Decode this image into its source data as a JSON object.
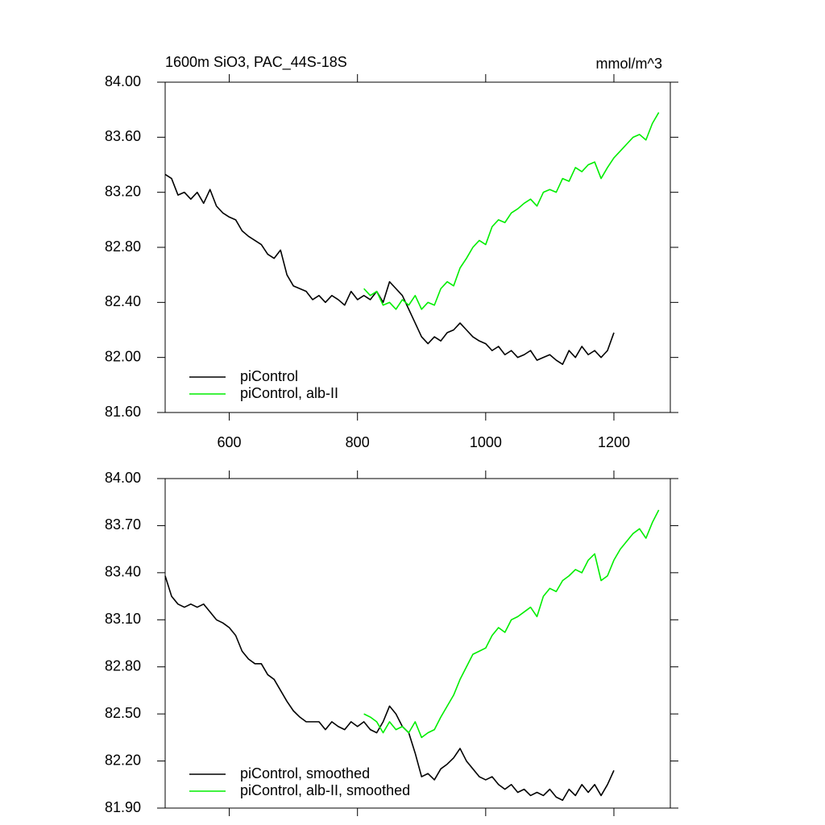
{
  "chart_data": [
    {
      "type": "line",
      "title": "1600m SiO3, PAC_44S-18S",
      "units": "mmol/m^3",
      "legend": "lower left",
      "xlim": [
        500,
        1288
      ],
      "xticks": [
        600,
        800,
        1000,
        1200
      ],
      "ylim": [
        81.6,
        84.0
      ],
      "yticks": [
        {
          "value": 81.6,
          "label": "81.60"
        },
        {
          "value": 82.0,
          "label": "82.00"
        },
        {
          "value": 82.4,
          "label": "82.40"
        },
        {
          "value": 82.8,
          "label": "82.80"
        },
        {
          "value": 83.2,
          "label": "83.20"
        },
        {
          "value": 83.6,
          "label": "83.60"
        },
        {
          "value": 84.0,
          "label": "84.00"
        }
      ],
      "series": [
        {
          "name": "piControl",
          "color": "#000000",
          "x": [
            500,
            510,
            520,
            530,
            540,
            550,
            560,
            570,
            580,
            590,
            600,
            610,
            620,
            630,
            640,
            650,
            660,
            670,
            680,
            690,
            700,
            710,
            720,
            730,
            740,
            750,
            760,
            770,
            780,
            790,
            800,
            810,
            820,
            830,
            840,
            850,
            860,
            870,
            880,
            890,
            900,
            910,
            920,
            930,
            940,
            950,
            960,
            970,
            980,
            990,
            1000,
            1010,
            1020,
            1030,
            1040,
            1050,
            1060,
            1070,
            1080,
            1090,
            1100,
            1110,
            1120,
            1130,
            1140,
            1150,
            1160,
            1170,
            1180,
            1190,
            1200
          ],
          "values": [
            83.33,
            83.3,
            83.18,
            83.2,
            83.15,
            83.2,
            83.12,
            83.22,
            83.1,
            83.05,
            83.02,
            83.0,
            82.92,
            82.88,
            82.85,
            82.82,
            82.75,
            82.72,
            82.78,
            82.6,
            82.52,
            82.5,
            82.48,
            82.42,
            82.45,
            82.4,
            82.45,
            82.42,
            82.38,
            82.48,
            82.42,
            82.45,
            82.42,
            82.48,
            82.4,
            82.55,
            82.5,
            82.45,
            82.35,
            82.25,
            82.15,
            82.1,
            82.15,
            82.12,
            82.18,
            82.2,
            82.25,
            82.2,
            82.15,
            82.12,
            82.1,
            82.05,
            82.08,
            82.02,
            82.05,
            82.0,
            82.02,
            82.05,
            81.98,
            82.0,
            82.02,
            81.98,
            81.95,
            82.05,
            82.0,
            82.08,
            82.02,
            82.05,
            82.0,
            82.05,
            82.18
          ]
        },
        {
          "name": "piControl, alb-II",
          "color": "#00ee00",
          "x": [
            810,
            820,
            830,
            840,
            850,
            860,
            870,
            880,
            890,
            900,
            910,
            920,
            930,
            940,
            950,
            960,
            970,
            980,
            990,
            1000,
            1010,
            1020,
            1030,
            1040,
            1050,
            1060,
            1070,
            1080,
            1090,
            1100,
            1110,
            1120,
            1130,
            1140,
            1150,
            1160,
            1170,
            1180,
            1190,
            1200,
            1210,
            1220,
            1230,
            1240,
            1250,
            1260,
            1270
          ],
          "values": [
            82.5,
            82.45,
            82.48,
            82.38,
            82.4,
            82.35,
            82.42,
            82.38,
            82.45,
            82.35,
            82.4,
            82.38,
            82.5,
            82.55,
            82.52,
            82.65,
            82.72,
            82.8,
            82.85,
            82.82,
            82.95,
            83.0,
            82.98,
            83.05,
            83.08,
            83.12,
            83.15,
            83.1,
            83.2,
            83.22,
            83.2,
            83.3,
            83.28,
            83.38,
            83.35,
            83.4,
            83.42,
            83.3,
            83.38,
            83.45,
            83.5,
            83.55,
            83.6,
            83.62,
            83.58,
            83.7,
            83.78
          ]
        }
      ]
    },
    {
      "type": "line",
      "legend": "lower left",
      "xlim": [
        500,
        1288
      ],
      "xticks": [
        600,
        800,
        1000,
        1200
      ],
      "ylim": [
        81.9,
        84.0
      ],
      "yticks": [
        {
          "value": 81.9,
          "label": "81.90"
        },
        {
          "value": 82.2,
          "label": "82.20"
        },
        {
          "value": 82.5,
          "label": "82.50"
        },
        {
          "value": 82.8,
          "label": "82.80"
        },
        {
          "value": 83.1,
          "label": "83.10"
        },
        {
          "value": 83.4,
          "label": "83.40"
        },
        {
          "value": 83.7,
          "label": "83.70"
        },
        {
          "value": 84.0,
          "label": "84.00"
        }
      ],
      "series": [
        {
          "name": "piControl, smoothed",
          "color": "#000000",
          "x": [
            500,
            510,
            520,
            530,
            540,
            550,
            560,
            570,
            580,
            590,
            600,
            610,
            620,
            630,
            640,
            650,
            660,
            670,
            680,
            690,
            700,
            710,
            720,
            730,
            740,
            750,
            760,
            770,
            780,
            790,
            800,
            810,
            820,
            830,
            840,
            850,
            860,
            870,
            880,
            890,
            900,
            910,
            920,
            930,
            940,
            950,
            960,
            970,
            980,
            990,
            1000,
            1010,
            1020,
            1030,
            1040,
            1050,
            1060,
            1070,
            1080,
            1090,
            1100,
            1110,
            1120,
            1130,
            1140,
            1150,
            1160,
            1170,
            1180,
            1190,
            1200
          ],
          "values": [
            83.38,
            83.25,
            83.2,
            83.18,
            83.2,
            83.18,
            83.2,
            83.15,
            83.1,
            83.08,
            83.05,
            83.0,
            82.9,
            82.85,
            82.82,
            82.82,
            82.75,
            82.72,
            82.65,
            82.58,
            82.52,
            82.48,
            82.45,
            82.45,
            82.45,
            82.4,
            82.45,
            82.42,
            82.4,
            82.45,
            82.42,
            82.45,
            82.4,
            82.38,
            82.45,
            82.55,
            82.5,
            82.42,
            82.38,
            82.25,
            82.1,
            82.12,
            82.08,
            82.15,
            82.18,
            82.22,
            82.28,
            82.2,
            82.15,
            82.1,
            82.08,
            82.1,
            82.05,
            82.02,
            82.05,
            82.0,
            82.02,
            81.98,
            82.0,
            81.98,
            82.02,
            81.97,
            81.95,
            82.02,
            81.98,
            82.05,
            82.0,
            82.05,
            81.98,
            82.05,
            82.14
          ]
        },
        {
          "name": "piControl, alb-II, smoothed",
          "color": "#00ee00",
          "x": [
            810,
            820,
            830,
            840,
            850,
            860,
            870,
            880,
            890,
            900,
            910,
            920,
            930,
            940,
            950,
            960,
            970,
            980,
            990,
            1000,
            1010,
            1020,
            1030,
            1040,
            1050,
            1060,
            1070,
            1080,
            1090,
            1100,
            1110,
            1120,
            1130,
            1140,
            1150,
            1160,
            1170,
            1180,
            1190,
            1200,
            1210,
            1220,
            1230,
            1240,
            1250,
            1260,
            1270
          ],
          "values": [
            82.5,
            82.48,
            82.45,
            82.38,
            82.45,
            82.4,
            82.42,
            82.38,
            82.45,
            82.35,
            82.38,
            82.4,
            82.48,
            82.55,
            82.62,
            82.72,
            82.8,
            82.88,
            82.9,
            82.92,
            83.0,
            83.05,
            83.02,
            83.1,
            83.12,
            83.15,
            83.18,
            83.12,
            83.25,
            83.3,
            83.28,
            83.35,
            83.38,
            83.42,
            83.4,
            83.48,
            83.52,
            83.35,
            83.38,
            83.48,
            83.55,
            83.6,
            83.65,
            83.68,
            83.62,
            83.72,
            83.8
          ]
        }
      ]
    }
  ]
}
